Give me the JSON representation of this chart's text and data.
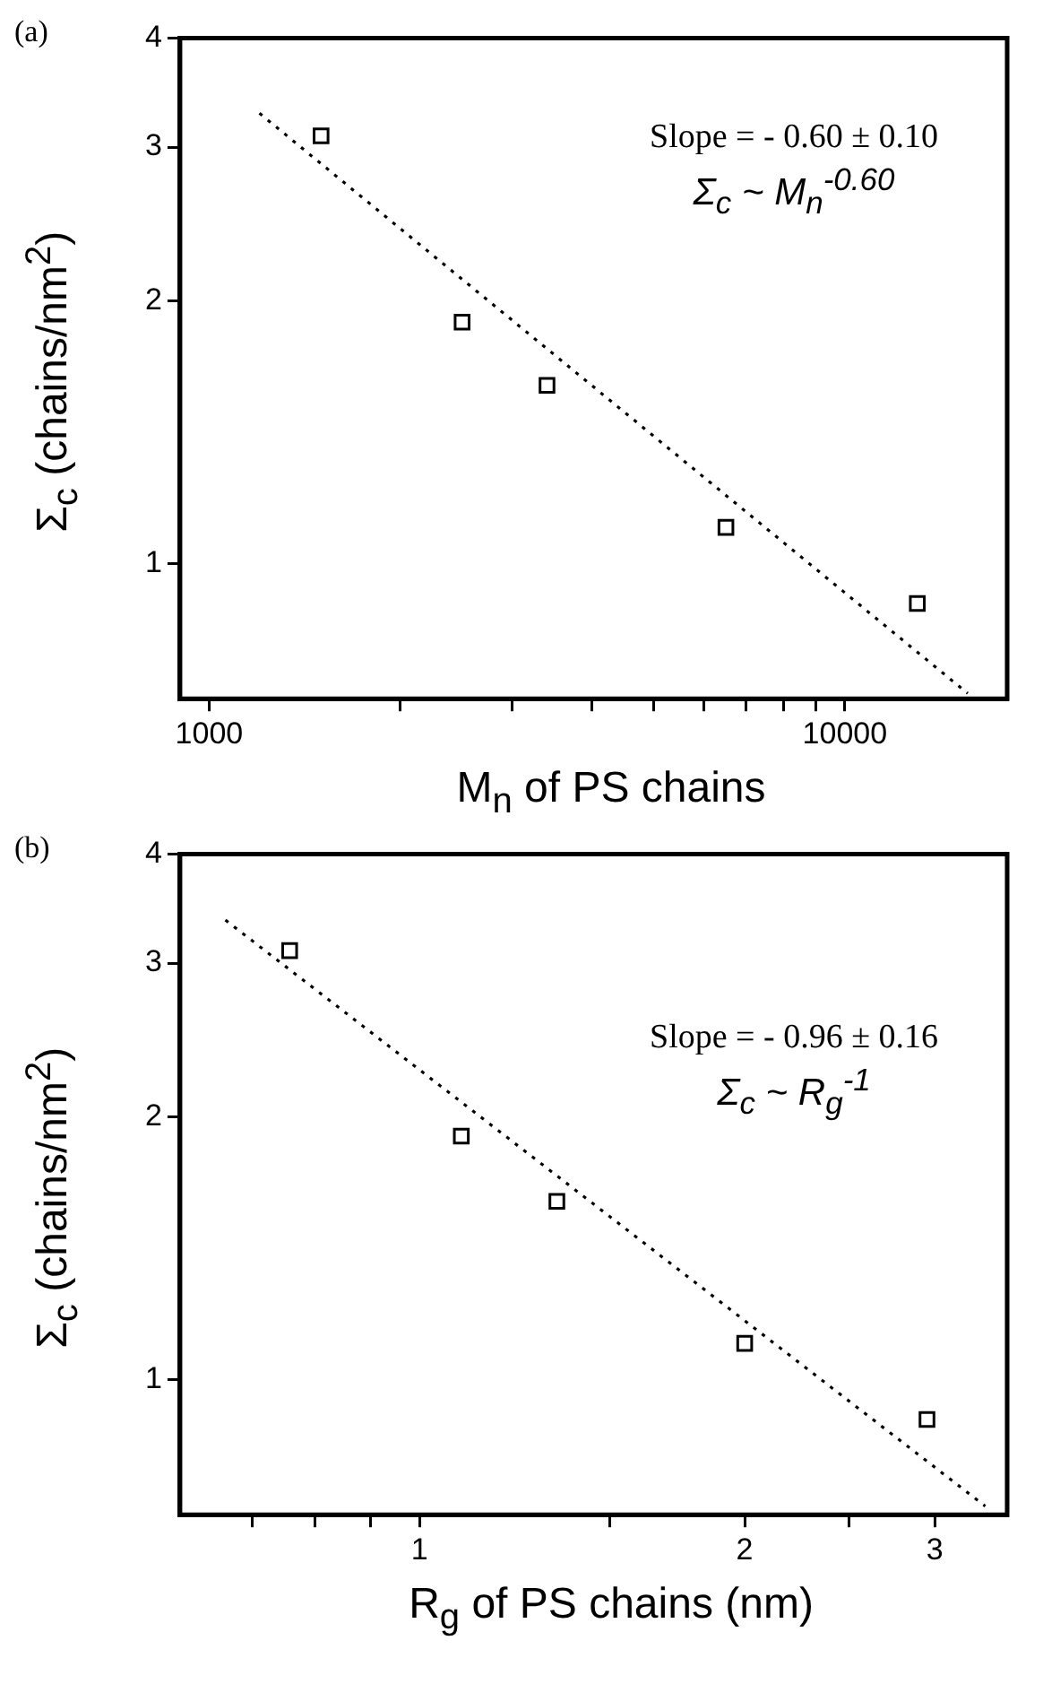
{
  "chart_data": [
    {
      "type": "scatter",
      "title": "(a)",
      "xlabel": "M$_{n}$ of PS chains",
      "ylabel": "Σ$_{c}$  (chains/nm$^{2}$)",
      "log": "xy",
      "marker": "square",
      "xlim": [
        900,
        18000
      ],
      "ylim": [
        0.7,
        4
      ],
      "xticks": [
        1000,
        {
          "value": 2000,
          "label": null
        },
        {
          "value": 3000,
          "label": null
        },
        {
          "value": 4000,
          "label": null
        },
        {
          "value": 5000,
          "label": null
        },
        {
          "value": 6000,
          "label": null
        },
        {
          "value": 7000,
          "label": null
        },
        {
          "value": 8000,
          "label": null
        },
        {
          "value": 9000,
          "label": null
        },
        10000
      ],
      "yticks": [
        1,
        2,
        3,
        4
      ],
      "annotations": [
        "Slope = - 0.60 ± 0.10",
        "Σ$_{c}$ ~ M$_{n}$$^{-0.60}$"
      ],
      "series": [
        {
          "color": "#000000",
          "x": [
            1500,
            2500,
            3400,
            6500,
            13000
          ],
          "values": [
            3.09,
            1.89,
            1.6,
            1.1,
            0.9
          ]
        },
        {
          "type": "line",
          "line_style": "dotted",
          "marker": "none",
          "color": "#000000",
          "x": [
            1200,
            15600
          ],
          "values": [
            3.28,
            0.71
          ]
        }
      ]
    },
    {
      "type": "scatter",
      "title": "(b)",
      "xlabel": "R$_{g}$ of PS chains (nm)",
      "ylabel": "Σ$_{c}$  (chains/nm$^{2}$)",
      "log": "xy",
      "marker": "square",
      "xlim": [
        0.6,
        3.5
      ],
      "ylim": [
        0.7,
        4
      ],
      "xticks": [
        {
          "value": 0.7,
          "label": null
        },
        {
          "value": 0.8,
          "label": null
        },
        {
          "value": 0.9,
          "label": null
        },
        1,
        {
          "value": 1.5,
          "label": null
        },
        2,
        {
          "value": 2.5,
          "label": null
        },
        3
      ],
      "yticks": [
        1,
        2,
        3,
        4
      ],
      "annotations": [
        "Slope = - 0.96 ± 0.16",
        "Σ$_{c}$ ~ R$_{g}$$^{-1}$"
      ],
      "series": [
        {
          "color": "#000000",
          "x": [
            0.758,
            1.093,
            1.34,
            2.0,
            2.95
          ],
          "values": [
            3.1,
            1.9,
            1.6,
            1.1,
            0.9
          ]
        },
        {
          "type": "line",
          "line_style": "dotted",
          "marker": "none",
          "color": "#000000",
          "x": [
            0.661,
            3.34
          ],
          "values": [
            3.36,
            0.716
          ]
        }
      ]
    }
  ]
}
